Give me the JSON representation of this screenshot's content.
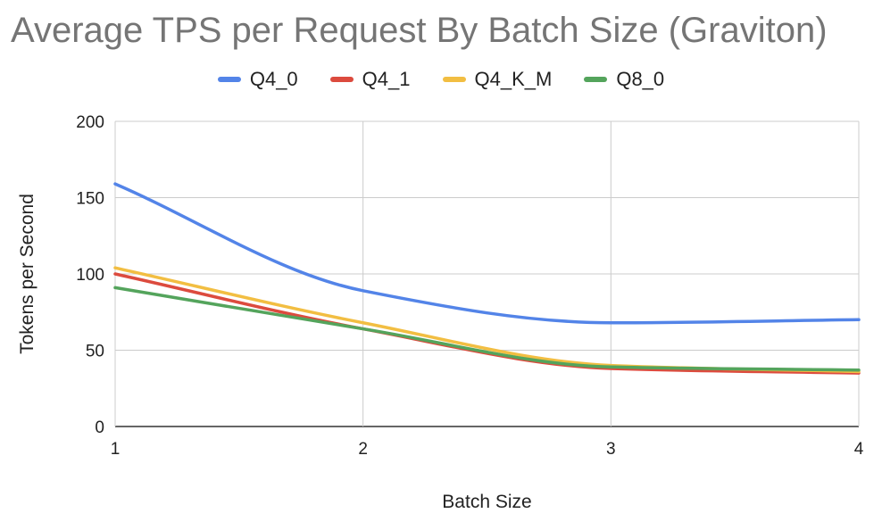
{
  "chart_data": {
    "type": "line",
    "title": "Average TPS per Request By Batch Size (Graviton)",
    "xlabel": "Batch Size",
    "ylabel": "Tokens per Second",
    "x": [
      1,
      2,
      3,
      4
    ],
    "xlim": [
      1,
      4
    ],
    "ylim": [
      0,
      200
    ],
    "xticks": [
      "1",
      "2",
      "3",
      "4"
    ],
    "yticks": [
      "0",
      "50",
      "100",
      "150",
      "200"
    ],
    "grid": true,
    "legend_position": "top",
    "series": [
      {
        "name": "Q4_0",
        "color": "#5384e8",
        "values": [
          159,
          89,
          68,
          70
        ]
      },
      {
        "name": "Q4_1",
        "color": "#dc4b3e",
        "values": [
          100,
          64,
          38,
          35
        ]
      },
      {
        "name": "Q4_K_M",
        "color": "#f2be42",
        "values": [
          104,
          68,
          40,
          36
        ]
      },
      {
        "name": "Q8_0",
        "color": "#54a45c",
        "values": [
          91,
          64,
          39,
          37
        ]
      }
    ]
  }
}
